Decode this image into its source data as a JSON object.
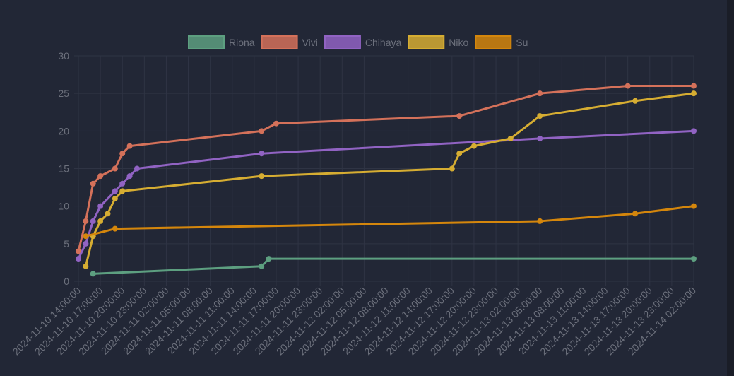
{
  "chart_data": {
    "type": "line",
    "title": "",
    "xlabel": "",
    "ylabel": "",
    "ylim": [
      0,
      30
    ],
    "yticks": [
      0,
      5,
      10,
      15,
      20,
      25,
      30
    ],
    "xlim": [
      "2024-11-10 14:00",
      "2024-11-14 02:00"
    ],
    "xtick_step_hours": 3,
    "grid": true,
    "legend_position": "top-center",
    "series": [
      {
        "name": "Riona",
        "color": "#5d9f80",
        "points": [
          [
            "2024-11-10 16:00",
            1
          ],
          [
            "2024-11-11 15:00",
            2
          ],
          [
            "2024-11-11 16:00",
            3
          ],
          [
            "2024-11-14 02:00",
            3
          ]
        ]
      },
      {
        "name": "Vivi",
        "color": "#d4715a",
        "points": [
          [
            "2024-11-10 14:00",
            4
          ],
          [
            "2024-11-10 15:00",
            8
          ],
          [
            "2024-11-10 16:00",
            13
          ],
          [
            "2024-11-10 17:00",
            14
          ],
          [
            "2024-11-10 19:00",
            15
          ],
          [
            "2024-11-10 20:00",
            17
          ],
          [
            "2024-11-10 21:00",
            18
          ],
          [
            "2024-11-11 15:00",
            20
          ],
          [
            "2024-11-11 17:00",
            21
          ],
          [
            "2024-11-12 18:00",
            22
          ],
          [
            "2024-11-13 05:00",
            25
          ],
          [
            "2024-11-13 17:00",
            26
          ],
          [
            "2024-11-14 02:00",
            26
          ]
        ]
      },
      {
        "name": "Chihaya",
        "color": "#9163c3",
        "points": [
          [
            "2024-11-10 14:00",
            3
          ],
          [
            "2024-11-10 15:00",
            5
          ],
          [
            "2024-11-10 16:00",
            8
          ],
          [
            "2024-11-10 17:00",
            10
          ],
          [
            "2024-11-10 19:00",
            12
          ],
          [
            "2024-11-10 20:00",
            13
          ],
          [
            "2024-11-10 21:00",
            14
          ],
          [
            "2024-11-10 22:00",
            15
          ],
          [
            "2024-11-11 15:00",
            17
          ],
          [
            "2024-11-13 05:00",
            19
          ],
          [
            "2024-11-14 02:00",
            20
          ]
        ]
      },
      {
        "name": "Niko",
        "color": "#d6ad32",
        "points": [
          [
            "2024-11-10 15:00",
            2
          ],
          [
            "2024-11-10 16:00",
            6
          ],
          [
            "2024-11-10 17:00",
            8
          ],
          [
            "2024-11-10 18:00",
            9
          ],
          [
            "2024-11-10 19:00",
            11
          ],
          [
            "2024-11-10 20:00",
            12
          ],
          [
            "2024-11-11 15:00",
            14
          ],
          [
            "2024-11-12 17:00",
            15
          ],
          [
            "2024-11-12 18:00",
            17
          ],
          [
            "2024-11-12 20:00",
            18
          ],
          [
            "2024-11-13 01:00",
            19
          ],
          [
            "2024-11-13 05:00",
            22
          ],
          [
            "2024-11-13 18:00",
            24
          ],
          [
            "2024-11-14 02:00",
            25
          ]
        ]
      },
      {
        "name": "Su",
        "color": "#d4860c",
        "points": [
          [
            "2024-11-10 15:00",
            6
          ],
          [
            "2024-11-10 19:00",
            7
          ],
          [
            "2024-11-13 05:00",
            8
          ],
          [
            "2024-11-13 18:00",
            9
          ],
          [
            "2024-11-14 02:00",
            10
          ]
        ]
      }
    ]
  }
}
